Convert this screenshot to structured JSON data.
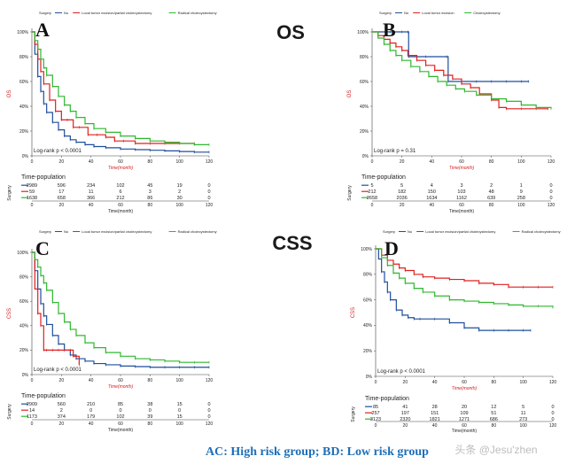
{
  "section_titles": {
    "top": "OS",
    "bottom": "CSS"
  },
  "footer": {
    "text": "AC: High risk group;   BD: Low risk group",
    "watermark": "头条 @Jesu'zhen"
  },
  "colors": {
    "no": "#1f4e9c",
    "local": "#e01f1f",
    "radical": "#2eb82e"
  },
  "chart_data": [
    {
      "panel": "A",
      "type": "line",
      "xlabel": "Time(month)",
      "ylabel": "OS",
      "legend": {
        "title": "Surgery",
        "entries": [
          "No",
          "Local tumor excision/partial cholecystectomy",
          "Radical cholecystectomy"
        ]
      },
      "stat": "Log-rank  p < 0.0001",
      "xlim": [
        0,
        120
      ],
      "ylim": [
        0,
        1
      ],
      "xticks": [
        0,
        20,
        40,
        60,
        80,
        100,
        120
      ],
      "yticks": [
        "0%",
        "20%",
        "40%",
        "60%",
        "80%",
        "100%"
      ],
      "series": [
        {
          "name": "No",
          "color": "no",
          "x": [
            0,
            2,
            4,
            6,
            8,
            10,
            14,
            18,
            22,
            26,
            30,
            36,
            42,
            50,
            60,
            70,
            80,
            90,
            100,
            110,
            120
          ],
          "y": [
            1,
            0.82,
            0.64,
            0.52,
            0.42,
            0.35,
            0.27,
            0.21,
            0.16,
            0.13,
            0.11,
            0.09,
            0.075,
            0.065,
            0.055,
            0.05,
            0.045,
            0.04,
            0.035,
            0.03,
            0.03
          ]
        },
        {
          "name": "Local tumor excision/partial cholecystectomy",
          "color": "local",
          "x": [
            0,
            2,
            4,
            6,
            8,
            12,
            16,
            20,
            24,
            28,
            32,
            38,
            44,
            50,
            56,
            62,
            70,
            80,
            90,
            100,
            110
          ],
          "y": [
            1,
            0.9,
            0.78,
            0.68,
            0.58,
            0.45,
            0.36,
            0.29,
            0.29,
            0.23,
            0.23,
            0.17,
            0.17,
            0.15,
            0.12,
            0.12,
            0.1,
            0.1,
            0.1,
            0.1,
            0.1
          ]
        },
        {
          "name": "Radical cholecystectomy",
          "color": "radical",
          "x": [
            0,
            2,
            4,
            6,
            8,
            10,
            14,
            18,
            22,
            26,
            30,
            36,
            42,
            50,
            60,
            70,
            80,
            90,
            100,
            110,
            120
          ],
          "y": [
            1,
            0.93,
            0.86,
            0.78,
            0.71,
            0.65,
            0.56,
            0.48,
            0.41,
            0.36,
            0.31,
            0.26,
            0.22,
            0.19,
            0.16,
            0.14,
            0.12,
            0.11,
            0.1,
            0.09,
            0.09
          ]
        }
      ],
      "risk_table": {
        "title": "Time-population",
        "ylabel": "Surgery",
        "xlabel": "Time(month)",
        "times": [
          0,
          20,
          40,
          60,
          80,
          100,
          120
        ],
        "rows": [
          {
            "color": "no",
            "values": [
              2989,
              596,
              234,
              102,
              45,
              19,
              0
            ]
          },
          {
            "color": "local",
            "values": [
              59,
              17,
              11,
              6,
              3,
              2,
              0
            ]
          },
          {
            "color": "radical",
            "values": [
              1638,
              658,
              366,
              212,
              86,
              30,
              0
            ]
          }
        ]
      }
    },
    {
      "panel": "B",
      "type": "line",
      "xlabel": "Time(month)",
      "ylabel": "OS",
      "legend": {
        "title": "Surgery",
        "entries": [
          "No",
          "Local tumor excision",
          "Cholecystectomy"
        ]
      },
      "stat": "Log-rank     p = 0.31",
      "xlim": [
        0,
        120
      ],
      "ylim": [
        0,
        1
      ],
      "xticks": [
        0,
        20,
        40,
        60,
        80,
        100,
        120
      ],
      "yticks": [
        "0%",
        "20%",
        "40%",
        "60%",
        "80%",
        "100%"
      ],
      "series": [
        {
          "name": "No",
          "color": "no",
          "x": [
            0,
            8,
            12,
            20,
            24,
            24.5,
            36,
            50,
            51,
            60,
            70,
            80,
            90,
            100,
            105
          ],
          "y": [
            1,
            1,
            1,
            1,
            1,
            0.8,
            0.8,
            0.8,
            0.6,
            0.6,
            0.6,
            0.6,
            0.6,
            0.6,
            0.6
          ]
        },
        {
          "name": "Local tumor excision",
          "color": "local",
          "x": [
            0,
            4,
            8,
            12,
            16,
            20,
            24,
            30,
            36,
            42,
            48,
            54,
            60,
            66,
            72,
            80,
            85,
            90,
            100,
            110,
            118
          ],
          "y": [
            1,
            0.97,
            0.94,
            0.91,
            0.88,
            0.85,
            0.81,
            0.77,
            0.73,
            0.69,
            0.65,
            0.62,
            0.58,
            0.55,
            0.5,
            0.45,
            0.39,
            0.38,
            0.38,
            0.38,
            0.38
          ]
        },
        {
          "name": "Cholecystectomy",
          "color": "radical",
          "x": [
            0,
            4,
            8,
            12,
            16,
            20,
            26,
            32,
            38,
            44,
            50,
            56,
            62,
            70,
            80,
            90,
            100,
            110,
            120
          ],
          "y": [
            1,
            0.95,
            0.9,
            0.85,
            0.81,
            0.77,
            0.72,
            0.68,
            0.64,
            0.6,
            0.57,
            0.54,
            0.52,
            0.49,
            0.46,
            0.44,
            0.41,
            0.39,
            0.38
          ]
        }
      ],
      "risk_table": {
        "title": "Time-population",
        "ylabel": "Surgery",
        "xlabel": "Time(month)",
        "times": [
          0,
          20,
          40,
          60,
          80,
          100,
          120
        ],
        "rows": [
          {
            "color": "no",
            "values": [
              5,
              5,
              4,
              3,
              2,
              1,
              0
            ]
          },
          {
            "color": "local",
            "values": [
              212,
              182,
              150,
              103,
              48,
              9,
              0
            ]
          },
          {
            "color": "radical",
            "values": [
              2658,
              2036,
              1634,
              1162,
              639,
              258,
              0
            ]
          }
        ]
      }
    },
    {
      "panel": "C",
      "type": "line",
      "xlabel": "Time(month)",
      "ylabel": "CSS",
      "legend": {
        "title": "Surgery",
        "entries": [
          "No",
          "Local tumor excision/partial cholecystectomy",
          "Radical cholecystectomy"
        ]
      },
      "stat": "Log-rank  p < 0.0001",
      "xlim": [
        0,
        120
      ],
      "ylim": [
        0,
        1
      ],
      "xticks": [
        0,
        20,
        40,
        60,
        80,
        100,
        120
      ],
      "yticks": [
        "0%",
        "20%",
        "40%",
        "60%",
        "80%",
        "100%"
      ],
      "series": [
        {
          "name": "No",
          "color": "no",
          "x": [
            0,
            2,
            4,
            6,
            8,
            10,
            14,
            18,
            22,
            26,
            30,
            36,
            42,
            50,
            60,
            70,
            80,
            90,
            100,
            110,
            120
          ],
          "y": [
            1,
            0.85,
            0.7,
            0.58,
            0.48,
            0.41,
            0.32,
            0.25,
            0.2,
            0.16,
            0.13,
            0.11,
            0.09,
            0.08,
            0.07,
            0.065,
            0.06,
            0.06,
            0.06,
            0.06,
            0.06
          ]
        },
        {
          "name": "Local tumor excision/partial cholecystectomy",
          "color": "local",
          "x": [
            0,
            2,
            4,
            6,
            8,
            10,
            14,
            18,
            22,
            26,
            28,
            30,
            32
          ],
          "y": [
            1,
            0.7,
            0.5,
            0.4,
            0.2,
            0.2,
            0.2,
            0.2,
            0.2,
            0.2,
            0.15,
            0.15,
            0.08
          ]
        },
        {
          "name": "Radical cholecystectomy",
          "color": "radical",
          "x": [
            0,
            2,
            4,
            6,
            8,
            10,
            14,
            18,
            22,
            26,
            30,
            36,
            42,
            50,
            60,
            70,
            80,
            90,
            100,
            110,
            120
          ],
          "y": [
            1,
            0.94,
            0.88,
            0.81,
            0.75,
            0.69,
            0.59,
            0.5,
            0.43,
            0.37,
            0.32,
            0.26,
            0.22,
            0.18,
            0.15,
            0.13,
            0.12,
            0.11,
            0.1,
            0.1,
            0.1
          ]
        }
      ],
      "risk_table": {
        "title": "Time-population",
        "ylabel": "Surgery",
        "xlabel": "Time(month)",
        "times": [
          0,
          20,
          40,
          60,
          80,
          100,
          120
        ],
        "rows": [
          {
            "color": "no",
            "values": [
              2909,
              560,
              210,
              85,
              38,
              15,
              0
            ]
          },
          {
            "color": "local",
            "values": [
              14,
              2,
              0,
              0,
              0,
              0,
              0
            ]
          },
          {
            "color": "radical",
            "values": [
              1173,
              374,
              179,
              102,
              39,
              15,
              0
            ]
          }
        ]
      }
    },
    {
      "panel": "D",
      "type": "line",
      "xlabel": "Time(month)",
      "ylabel": "CSS",
      "legend": {
        "title": "Surgery",
        "entries": [
          "No",
          "Local tumor excision/partial cholecystectomy",
          "Radical cholecystectomy"
        ]
      },
      "stat": "Log-rank     p < 0.0001",
      "xlim": [
        0,
        120
      ],
      "ylim": [
        0,
        1
      ],
      "xticks": [
        0,
        20,
        40,
        60,
        80,
        100,
        120
      ],
      "yticks": [
        "0%",
        "20%",
        "40%",
        "60%",
        "80%",
        "100%"
      ],
      "series": [
        {
          "name": "No",
          "color": "no",
          "x": [
            0,
            2,
            4,
            6,
            8,
            10,
            14,
            18,
            22,
            26,
            30,
            40,
            50,
            60,
            70,
            80,
            90,
            100,
            105
          ],
          "y": [
            1,
            0.92,
            0.82,
            0.74,
            0.66,
            0.6,
            0.52,
            0.48,
            0.46,
            0.45,
            0.45,
            0.45,
            0.42,
            0.38,
            0.36,
            0.36,
            0.36,
            0.36,
            0.36
          ]
        },
        {
          "name": "Local tumor excision/partial cholecystectomy",
          "color": "local",
          "x": [
            0,
            4,
            8,
            12,
            16,
            20,
            26,
            32,
            40,
            50,
            60,
            70,
            80,
            90,
            100,
            110,
            120
          ],
          "y": [
            1,
            0.95,
            0.91,
            0.88,
            0.85,
            0.83,
            0.8,
            0.78,
            0.77,
            0.76,
            0.75,
            0.73,
            0.72,
            0.7,
            0.7,
            0.7,
            0.7
          ]
        },
        {
          "name": "Radical cholecystectomy",
          "color": "radical",
          "x": [
            0,
            4,
            8,
            12,
            16,
            20,
            26,
            32,
            40,
            50,
            60,
            70,
            80,
            90,
            100,
            110,
            120
          ],
          "y": [
            1,
            0.93,
            0.87,
            0.81,
            0.77,
            0.73,
            0.69,
            0.66,
            0.63,
            0.6,
            0.59,
            0.58,
            0.57,
            0.56,
            0.55,
            0.55,
            0.54
          ]
        }
      ],
      "risk_table": {
        "title": "Time-population",
        "ylabel": "Surgery",
        "xlabel": "Time(month)",
        "times": [
          0,
          20,
          40,
          60,
          80,
          100,
          120
        ],
        "rows": [
          {
            "color": "no",
            "values": [
              85,
              41,
              28,
              20,
              12,
              5,
              0
            ]
          },
          {
            "color": "local",
            "values": [
              257,
              197,
              151,
              109,
              51,
              11,
              0
            ]
          },
          {
            "color": "radical",
            "values": [
              3123,
              2320,
              1821,
              1271,
              686,
              273,
              0
            ]
          }
        ]
      }
    }
  ]
}
